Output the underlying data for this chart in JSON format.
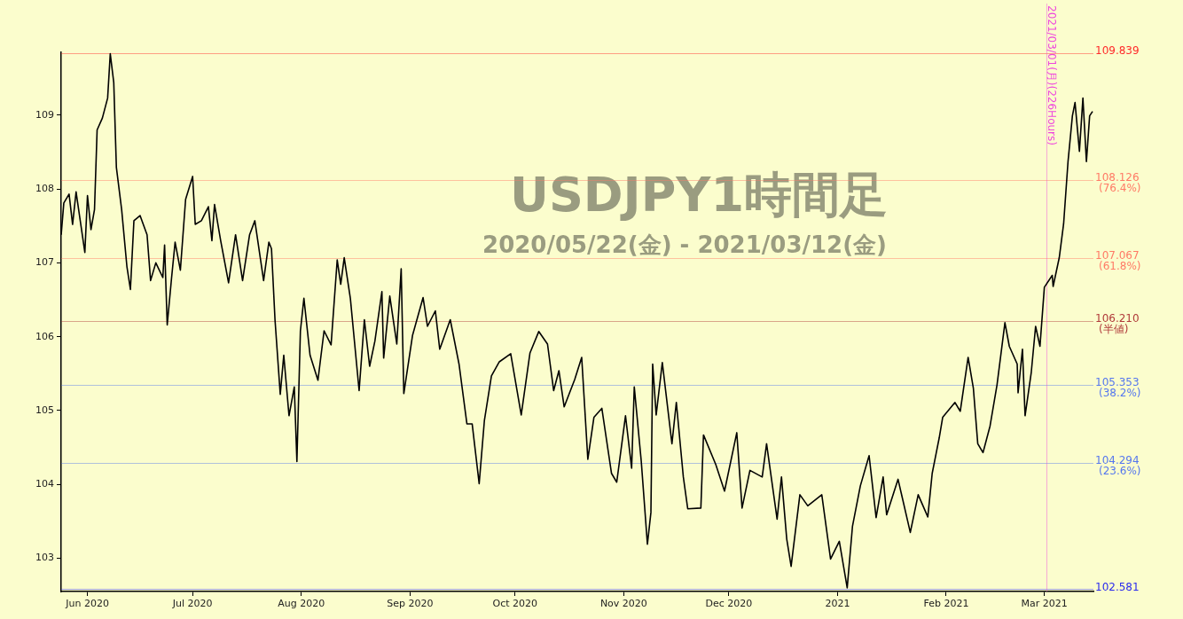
{
  "chart_data": {
    "type": "line",
    "title": "USDJPY1時間足",
    "subtitle": "2020/05/22(金) - 2021/03/12(金)",
    "x": [
      "2020-05-24T12:00",
      "2020-05-25T06:00",
      "2020-05-26T18:00",
      "2020-05-27T18:00",
      "2020-05-28T18:00",
      "2020-05-31T06:00",
      "2020-06-01",
      "2020-06-02",
      "2020-06-03",
      "2020-06-03T18:00",
      "2020-06-05T06:00",
      "2020-06-06T18:00",
      "2020-06-07T12:00",
      "2020-06-08T12:00",
      "2020-06-09T06:00",
      "2020-06-10T18:00",
      "2020-06-12T06:00",
      "2020-06-13T06:00",
      "2020-06-14T06:00",
      "2020-06-16",
      "2020-06-18",
      "2020-06-19",
      "2020-06-20T12:00",
      "2020-06-22T12:00",
      "2020-06-23",
      "2020-06-23T18:00",
      "2020-06-25",
      "2020-06-26",
      "2020-06-27T12:00",
      "2020-06-29",
      "2020-07-01",
      "2020-07-01T18:00",
      "2020-07-03T12:00",
      "2020-07-05T12:00",
      "2020-07-06T12:00",
      "2020-07-07T06:00",
      "2020-07-09",
      "2020-07-11T06:00",
      "2020-07-13T06:00",
      "2020-07-15T06:00",
      "2020-07-17T06:00",
      "2020-07-18T18:00",
      "2020-07-21T06:00",
      "2020-07-22T18:00",
      "2020-07-23T12:00",
      "2020-07-24T12:00",
      "2020-07-26",
      "2020-07-27",
      "2020-07-28T12:00",
      "2020-07-30",
      "2020-07-30T18:00",
      "2020-07-31T18:00",
      "2020-08-01T18:00",
      "2020-08-03T12:00",
      "2020-08-05T18:00",
      "2020-08-07T12:00",
      "2020-08-09T12:00",
      "2020-08-11T06:00",
      "2020-08-12T06:00",
      "2020-08-13T06:00",
      "2020-08-15",
      "2020-08-17T12:00",
      "2020-08-19",
      "2020-08-20T12:00",
      "2020-08-22",
      "2020-08-24",
      "2020-08-24T12:00",
      "2020-08-26T06:00",
      "2020-08-28T06:00",
      "2020-08-29T12:00",
      "2020-08-30T06:00",
      "2020-09-01T18:00",
      "2020-09-04T18:00",
      "2020-09-06",
      "2020-09-08T06:00",
      "2020-09-09T12:00",
      "2020-09-12T12:00",
      "2020-09-15",
      "2020-09-17T06:00",
      "2020-09-18T18:00",
      "2020-09-20T18:00",
      "2020-09-22T06:00",
      "2020-09-24T06:00",
      "2020-09-26T12:00",
      "2020-09-29T18:00",
      "2020-10-02T18:00",
      "2020-10-05T06:00",
      "2020-10-07T18:00",
      "2020-10-10T06:00",
      "2020-10-12",
      "2020-10-13T12:00",
      "2020-10-15",
      "2020-10-18",
      "2020-10-20",
      "2020-10-21T18:00",
      "2020-10-23T12:00",
      "2020-10-25T18:00",
      "2020-10-28T12:00",
      "2020-10-30",
      "2020-11-01T12:00",
      "2020-11-03T06:00",
      "2020-11-04",
      "2020-11-06",
      "2020-11-07T18:00",
      "2020-11-08T18:00",
      "2020-11-09T06:00",
      "2020-11-10T06:00",
      "2020-11-12",
      "2020-11-14T18:00",
      "2020-11-16",
      "2020-11-18",
      "2020-11-19T06:00",
      "2020-11-23",
      "2020-11-23T18:00",
      "2020-11-27T06:00",
      "2020-11-29T18:00",
      "2020-12-03T06:00",
      "2020-12-04T18:00",
      "2020-12-07",
      "2020-12-10T12:00",
      "2020-12-11T18:00",
      "2020-12-14T18:00",
      "2020-12-16",
      "2020-12-17T12:00",
      "2020-12-18T18:00",
      "2020-12-21T06:00",
      "2020-12-23T12:00",
      "2020-12-27T12:00",
      "2020-12-30",
      "2021-01-01T12:00",
      "2021-01-03T18:00",
      "2021-01-05T06:00",
      "2021-01-07T12:00",
      "2021-01-10",
      "2021-01-12",
      "2021-01-14",
      "2021-01-15",
      "2021-01-18T06:00",
      "2021-01-21T18:00",
      "2021-01-24",
      "2021-01-26T18:00",
      "2021-01-28",
      "2021-01-30",
      "2021-01-31",
      "2021-02-03T12:00",
      "2021-02-05",
      "2021-02-07T06:00",
      "2021-02-08T18:00",
      "2021-02-10",
      "2021-02-11T12:00",
      "2021-02-13T12:00",
      "2021-02-15T12:00",
      "2021-02-17T18:00",
      "2021-02-19",
      "2021-02-21T06:00",
      "2021-02-21T12:00",
      "2021-02-22T18:00",
      "2021-02-23T12:00",
      "2021-02-25T06:00",
      "2021-02-26T12:00",
      "2021-02-27T18:00",
      "2021-03-01",
      "2021-03-03T06:00",
      "2021-03-03T12:00",
      "2021-03-05T06:00",
      "2021-03-06T12:00",
      "2021-03-07T18:00",
      "2021-03-09",
      "2021-03-09T18:00",
      "2021-03-11",
      "2021-03-12",
      "2021-03-13",
      "2021-03-13T22:00",
      "2021-03-14T18:00"
    ],
    "series": [
      {
        "color": "#000000",
        "values": [
          107.38,
          107.81,
          107.93,
          107.52,
          107.96,
          107.14,
          107.91,
          107.45,
          107.72,
          108.8,
          108.96,
          109.23,
          109.83,
          109.44,
          108.29,
          107.72,
          106.95,
          106.64,
          107.57,
          107.64,
          107.38,
          106.76,
          107.0,
          106.8,
          107.24,
          106.16,
          106.8,
          107.28,
          106.9,
          107.86,
          108.17,
          107.52,
          107.57,
          107.76,
          107.3,
          107.79,
          107.3,
          106.73,
          107.38,
          106.76,
          107.38,
          107.57,
          106.76,
          107.28,
          107.19,
          106.23,
          105.22,
          105.75,
          104.93,
          105.32,
          104.31,
          106.08,
          106.52,
          105.75,
          105.41,
          106.08,
          105.89,
          107.04,
          106.71,
          107.07,
          106.52,
          105.27,
          106.23,
          105.6,
          105.94,
          106.61,
          105.71,
          106.55,
          105.9,
          106.92,
          105.23,
          106.02,
          106.53,
          106.14,
          106.35,
          105.83,
          106.23,
          105.63,
          104.82,
          104.82,
          104.01,
          104.87,
          105.47,
          105.66,
          105.77,
          104.94,
          105.78,
          106.07,
          105.9,
          105.27,
          105.54,
          105.05,
          105.42,
          105.72,
          104.34,
          104.91,
          105.03,
          104.15,
          104.03,
          104.93,
          104.22,
          105.32,
          104.31,
          103.19,
          103.62,
          105.63,
          104.94,
          105.65,
          104.55,
          105.11,
          104.1,
          103.67,
          103.68,
          104.67,
          104.27,
          103.91,
          104.7,
          103.68,
          104.19,
          104.1,
          104.55,
          103.53,
          104.1,
          103.26,
          102.89,
          103.86,
          103.71,
          103.86,
          102.99,
          103.23,
          102.6,
          103.43,
          103.98,
          104.39,
          103.55,
          104.1,
          103.59,
          104.07,
          103.35,
          103.86,
          103.56,
          104.15,
          104.63,
          104.91,
          105.11,
          104.99,
          105.72,
          105.3,
          104.55,
          104.43,
          104.79,
          105.35,
          106.19,
          105.87,
          105.63,
          105.24,
          105.83,
          104.93,
          105.51,
          106.14,
          105.87,
          106.67,
          106.83,
          106.68,
          107.07,
          107.53,
          108.37,
          108.99,
          109.17,
          108.51,
          109.23,
          108.37,
          108.99,
          109.05
        ]
      }
    ],
    "xlim": [
      "2020-05-24T12:00",
      "2021-03-15"
    ],
    "xticks": [
      {
        "value": "2020-06-01",
        "label": "Jun 2020"
      },
      {
        "value": "2020-07-01",
        "label": "Jul 2020"
      },
      {
        "value": "2020-08-01",
        "label": "Aug 2020"
      },
      {
        "value": "2020-09-01",
        "label": "Sep 2020"
      },
      {
        "value": "2020-10-01",
        "label": "Oct 2020"
      },
      {
        "value": "2020-11-01",
        "label": "Nov 2020"
      },
      {
        "value": "2020-12-01",
        "label": "Dec 2020"
      },
      {
        "value": "2021-01-01",
        "label": "2021"
      },
      {
        "value": "2021-02-01",
        "label": "Feb 2021"
      },
      {
        "value": "2021-03-01",
        "label": "Mar 2021"
      }
    ],
    "ylim": [
      102.55,
      109.85
    ],
    "yticks": [
      103,
      104,
      105,
      106,
      107,
      108,
      109
    ],
    "marker": "none",
    "line_style": "solid",
    "ref_lines": [
      {
        "axis": "y",
        "value": 109.839,
        "label": "109.839",
        "color": "#ff2a2a"
      },
      {
        "axis": "y",
        "value": 108.126,
        "label": "108.126 (76.4%)",
        "color": "#ff7a66"
      },
      {
        "axis": "y",
        "value": 107.067,
        "label": "107.067 (61.8%)",
        "color": "#ff7a66"
      },
      {
        "axis": "y",
        "value": 106.21,
        "label": "106.210 (半値)",
        "color": "#b03a3a"
      },
      {
        "axis": "y",
        "value": 105.353,
        "label": "105.353 (38.2%)",
        "color": "#5577ee"
      },
      {
        "axis": "y",
        "value": 104.294,
        "label": "104.294 (23.6%)",
        "color": "#5577ee"
      },
      {
        "axis": "y",
        "value": 102.581,
        "label": "102.581",
        "color": "#2a2aee"
      },
      {
        "axis": "x",
        "value": "2021-03-01T12:00",
        "label": "2021/03/01(月)(226Hours)",
        "color": "#ee44dd"
      }
    ]
  }
}
